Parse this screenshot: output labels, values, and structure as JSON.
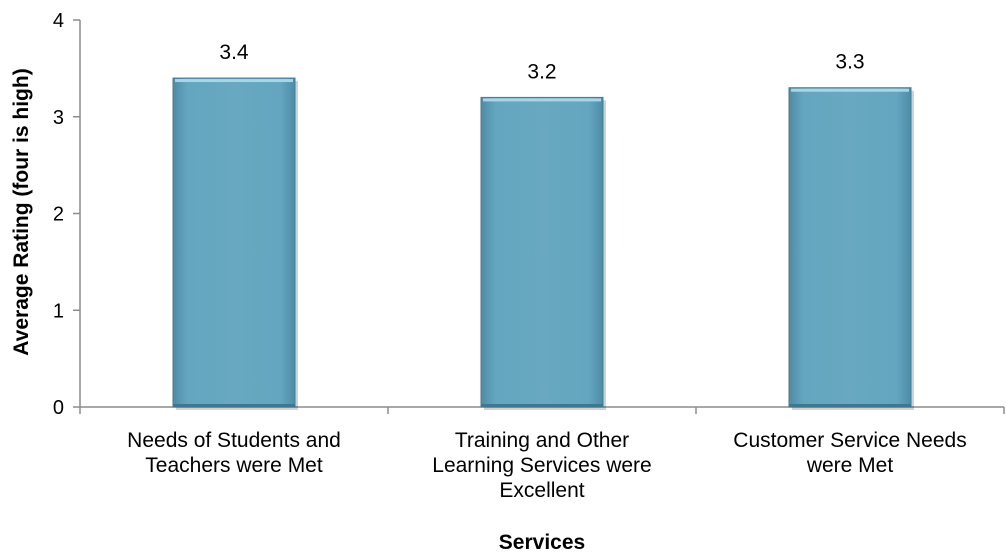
{
  "chart_data": {
    "type": "bar",
    "categories": [
      [
        "Needs of Students and",
        "Teachers were Met"
      ],
      [
        "Training and Other",
        "Learning Services were",
        "Excellent"
      ],
      [
        "Customer Service Needs",
        "were Met"
      ]
    ],
    "values": [
      3.4,
      3.2,
      3.3
    ],
    "data_labels": [
      "3.4",
      "3.2",
      "3.3"
    ],
    "title": "",
    "xlabel": "Services",
    "ylabel": "Average Rating (four is high)",
    "ylim": [
      0,
      4
    ],
    "yticks": [
      "0",
      "1",
      "2",
      "3",
      "4"
    ],
    "grid": false,
    "legend": "none",
    "colors": {
      "bar_fill": "#5f9fb9",
      "bar_top": "#a9d5e6",
      "bar_edge": "#3f7d96",
      "axis": "#8c8c8c"
    }
  }
}
